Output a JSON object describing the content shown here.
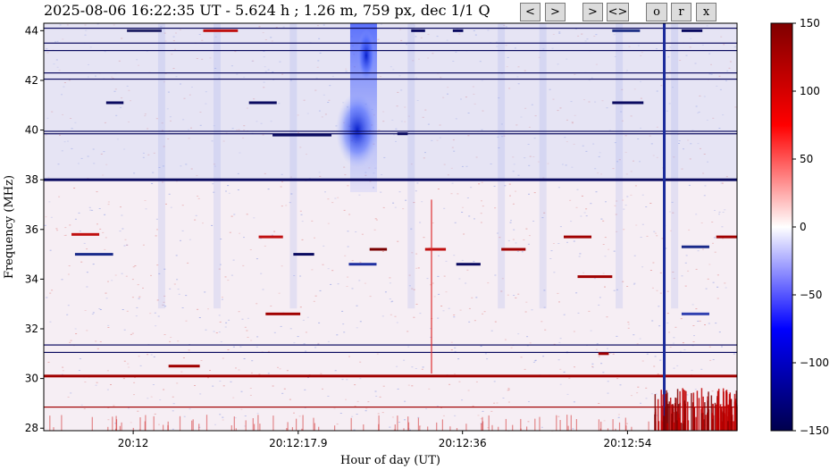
{
  "title": "2025-08-06 16:22:35 UT - 5.624 h ;    1.26 m, 759 px, dec 1/1 Q",
  "buttons": [
    "<",
    ">",
    "><",
    "<>",
    "o",
    "r",
    "x"
  ],
  "chart_data": {
    "type": "heatmap",
    "xlabel": "Hour of day (UT)",
    "ylabel": "Frequency (MHz)",
    "x_tick_labels": [
      "20:12",
      "20:12:17.9",
      "20:12:36",
      "20:12:54"
    ],
    "y_ticks": [
      28,
      30,
      32,
      34,
      36,
      38,
      40,
      42,
      44
    ],
    "ylim": [
      27.9,
      44.3
    ],
    "colorbar": {
      "ticks": [
        150,
        100,
        50,
        0,
        -50,
        -100,
        -150
      ],
      "range": [
        -150,
        150
      ],
      "colormap": "seismic"
    },
    "features": {
      "dark_horizontal_lines_mhz": [
        44.1,
        43.5,
        43.2,
        42.3,
        42.05,
        39.95,
        39.85,
        38.0,
        31.35,
        31.05
      ],
      "red_horizontal_lines_mhz": [
        30.1,
        28.85
      ],
      "vertical_dark_line_fraction": 0.895,
      "blue_burst_fraction": 0.46
    }
  }
}
